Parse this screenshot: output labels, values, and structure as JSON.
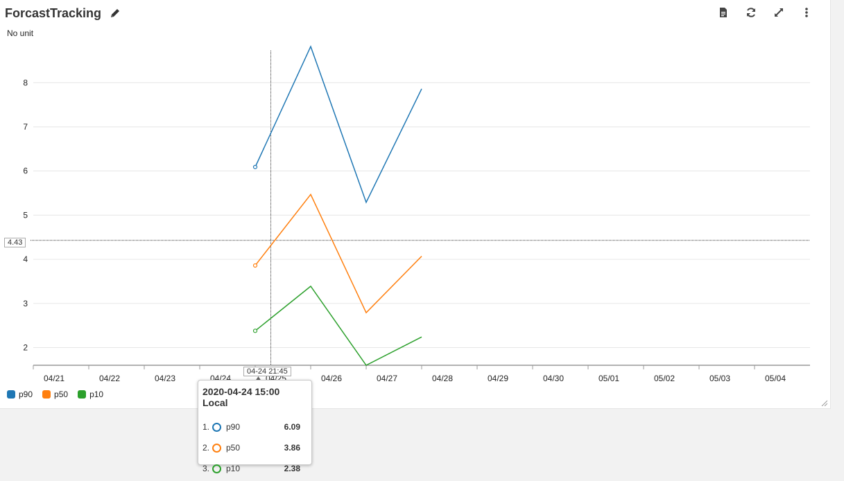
{
  "widget": {
    "title": "ForcastTracking",
    "unit_label": "No unit"
  },
  "toolbar": {
    "icons": [
      "document-icon",
      "refresh-icon",
      "expand-icon",
      "more-icon"
    ]
  },
  "chart_data": {
    "type": "line",
    "x_ticks": [
      "04/21",
      "04/22",
      "04/23",
      "04/24",
      "04/25",
      "04/26",
      "04/27",
      "04/28",
      "04/29",
      "04/30",
      "05/01",
      "05/02",
      "05/03",
      "05/04"
    ],
    "y_ticks": [
      2,
      3,
      4,
      5,
      6,
      7,
      8
    ],
    "ylim": [
      1.6,
      8.9
    ],
    "grid": true,
    "legend_position": "bottom-left",
    "x": [
      "04-24 15:00",
      "04-25 15:00",
      "04-26 15:00",
      "04-27 15:00"
    ],
    "series": [
      {
        "name": "p90",
        "color": "#1f77b4",
        "values": [
          6.09,
          8.82,
          5.29,
          7.86
        ]
      },
      {
        "name": "p50",
        "color": "#ff7f0e",
        "values": [
          3.86,
          5.47,
          2.79,
          4.07
        ]
      },
      {
        "name": "p10",
        "color": "#2ca02c",
        "values": [
          2.38,
          3.39,
          1.6,
          2.24
        ]
      }
    ],
    "crosshair": {
      "y_value_label": "4.43",
      "y_value": 4.43,
      "x_value_label": "04-24 21:45"
    }
  },
  "tooltip": {
    "title": "2020-04-24 15:00 Local",
    "rows": [
      {
        "index": "1.",
        "name": "p90",
        "value": "6.09",
        "color": "#1f77b4"
      },
      {
        "index": "2.",
        "name": "p50",
        "value": "3.86",
        "color": "#ff7f0e"
      },
      {
        "index": "3.",
        "name": "p10",
        "value": "2.38",
        "color": "#2ca02c"
      }
    ]
  }
}
